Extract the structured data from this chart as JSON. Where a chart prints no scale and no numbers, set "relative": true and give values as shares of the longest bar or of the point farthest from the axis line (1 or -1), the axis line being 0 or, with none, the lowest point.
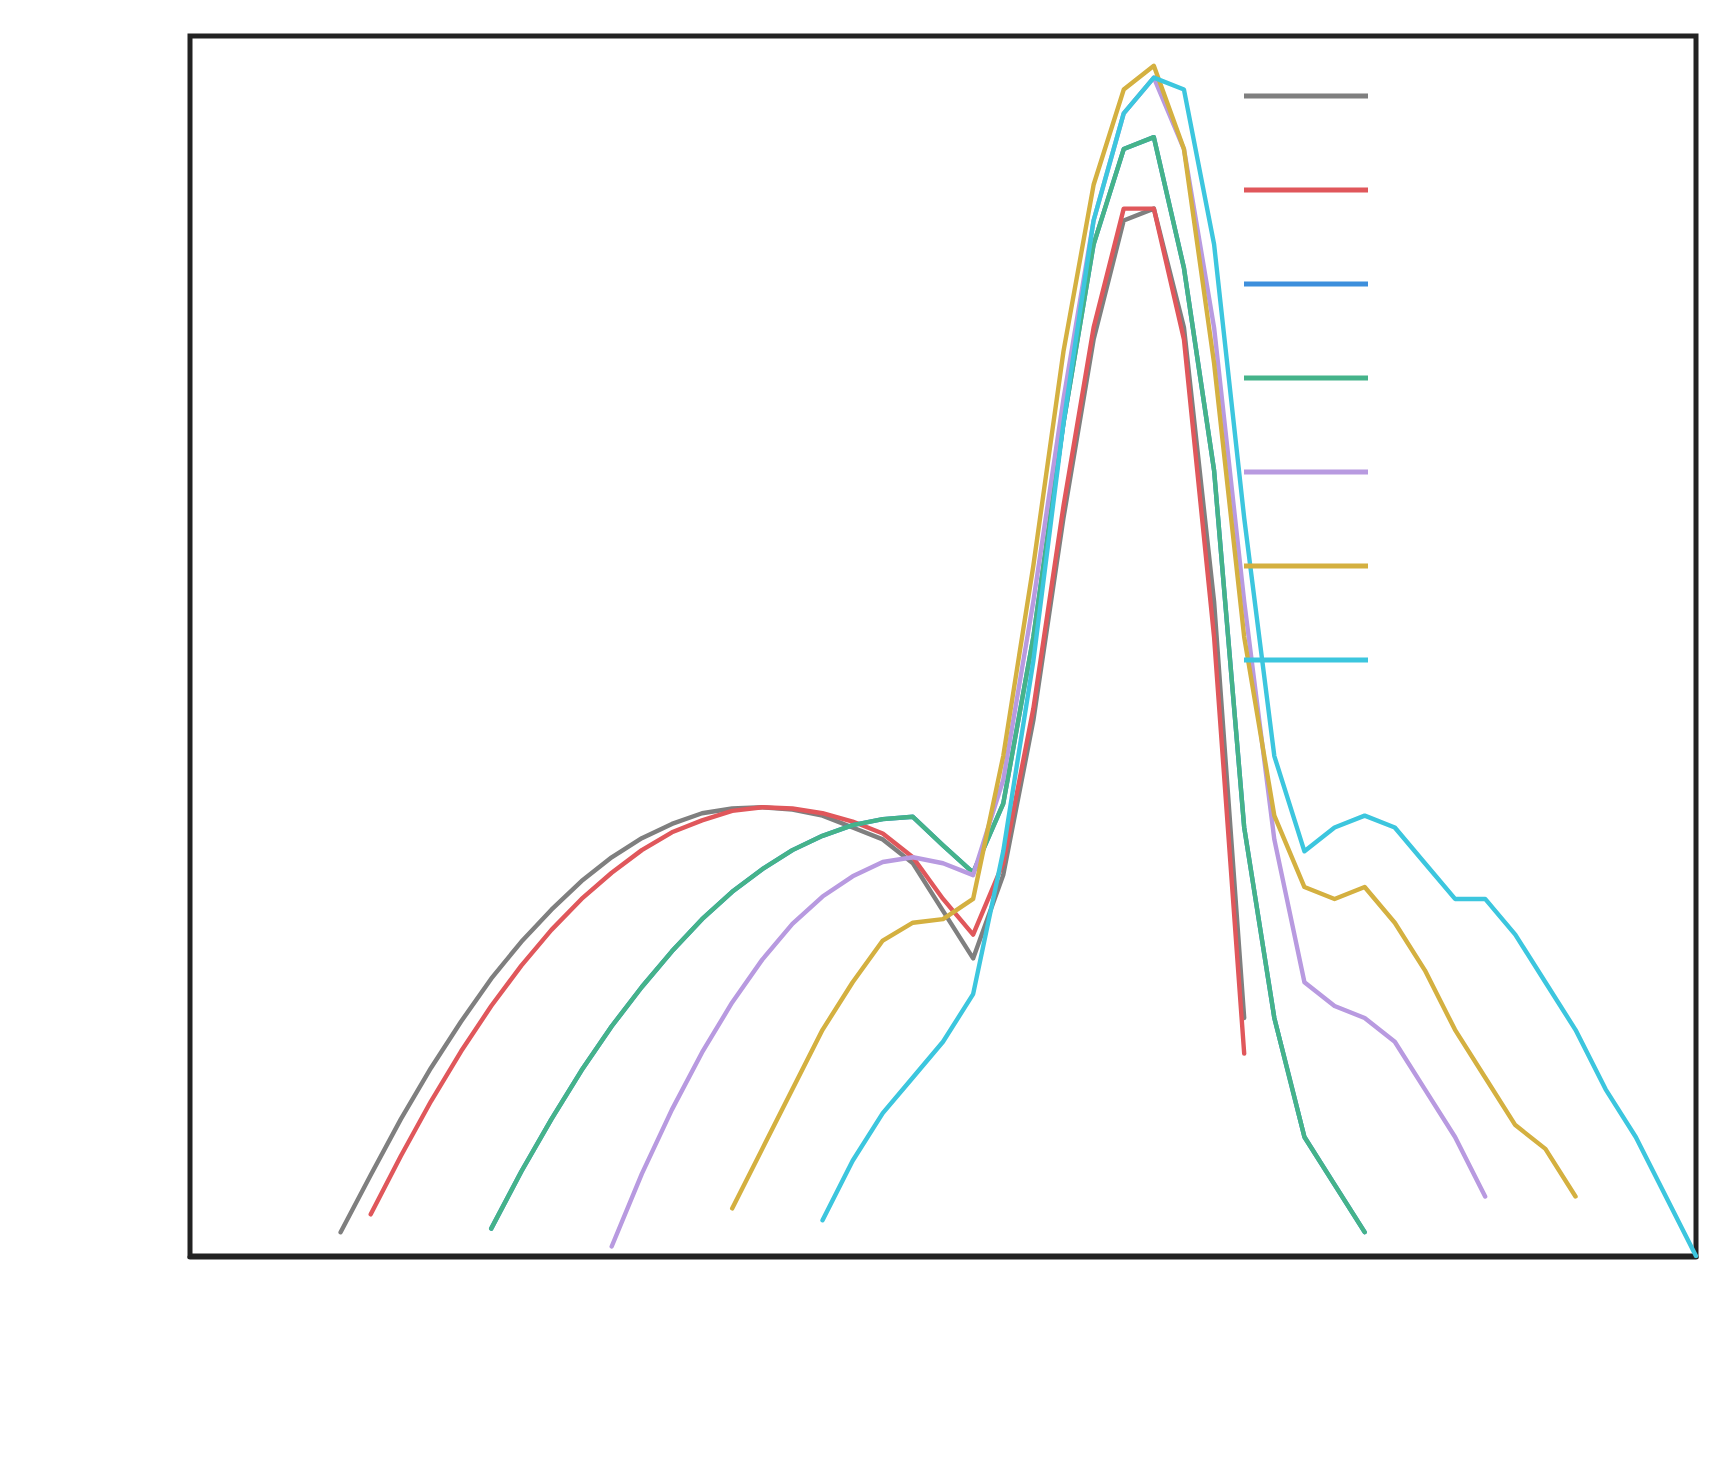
{
  "chart_data": {
    "type": "line",
    "relative": true,
    "marker": "none",
    "line_style": "solid",
    "categories": [
      null,
      null,
      null,
      null,
      null,
      null,
      null,
      null,
      null,
      null,
      null,
      null,
      null,
      null,
      null,
      null,
      null,
      null,
      null,
      null,
      null,
      null,
      null,
      null,
      null,
      null,
      null,
      null,
      null,
      null,
      null,
      null,
      null,
      null,
      null,
      null,
      null,
      null,
      null,
      null,
      null,
      null,
      null,
      null,
      null,
      null,
      null,
      null,
      null,
      null,
      null
    ],
    "series": [
      {
        "color": "#7f7f7f",
        "values": [
          null,
          null,
          null,
          null,
          null,
          0.02,
          0.068,
          0.115,
          0.158,
          0.197,
          0.233,
          0.264,
          0.291,
          0.315,
          0.335,
          0.351,
          0.363,
          0.372,
          0.376,
          0.377,
          0.375,
          0.37,
          0.36,
          0.35,
          0.33,
          0.29,
          0.25,
          0.32,
          0.45,
          0.62,
          0.77,
          0.87,
          0.88,
          0.78,
          0.55,
          0.2,
          null,
          null,
          null,
          null,
          null,
          null,
          null,
          null,
          null,
          null,
          null,
          null,
          null,
          null,
          null
        ]
      },
      {
        "color": "#e0575b",
        "values": [
          null,
          null,
          null,
          null,
          null,
          null,
          0.035,
          0.084,
          0.13,
          0.172,
          0.21,
          0.244,
          0.274,
          0.3,
          0.322,
          0.341,
          0.356,
          0.366,
          0.374,
          0.377,
          0.376,
          0.372,
          0.365,
          0.355,
          0.335,
          0.3,
          0.27,
          0.33,
          0.46,
          0.63,
          0.78,
          0.88,
          0.88,
          0.77,
          0.52,
          0.17,
          null,
          null,
          null,
          null,
          null,
          null,
          null,
          null,
          null,
          null,
          null,
          null,
          null,
          null,
          null
        ]
      },
      {
        "color": "#3d8fdc",
        "values": [
          null,
          null,
          null,
          null,
          null,
          null,
          null,
          null,
          null,
          null,
          0.023,
          0.071,
          0.115,
          0.156,
          0.193,
          0.226,
          0.256,
          0.283,
          0.306,
          0.325,
          0.341,
          0.353,
          0.362,
          0.367,
          0.369,
          0.345,
          0.322,
          0.38,
          0.52,
          0.7,
          0.85,
          0.93,
          0.94,
          0.83,
          0.66,
          0.36,
          0.2,
          0.1,
          0.06,
          0.02,
          null,
          null,
          null,
          null,
          null,
          null,
          null,
          null,
          null,
          null,
          null
        ]
      },
      {
        "color": "#45b38a",
        "values": [
          null,
          null,
          null,
          null,
          null,
          null,
          null,
          null,
          null,
          null,
          0.023,
          0.071,
          0.115,
          0.156,
          0.193,
          0.226,
          0.256,
          0.283,
          0.306,
          0.325,
          0.341,
          0.353,
          0.362,
          0.367,
          0.369,
          0.345,
          0.322,
          0.38,
          0.52,
          0.7,
          0.85,
          0.93,
          0.94,
          0.83,
          0.66,
          0.36,
          0.2,
          0.1,
          0.06,
          0.02,
          null,
          null,
          null,
          null,
          null,
          null,
          null,
          null,
          null,
          null,
          null
        ]
      },
      {
        "color": "#b89ae0",
        "values": [
          null,
          null,
          null,
          null,
          null,
          null,
          null,
          null,
          null,
          null,
          null,
          null,
          null,
          null,
          0.008,
          0.069,
          0.123,
          0.171,
          0.213,
          0.249,
          0.279,
          0.302,
          0.319,
          0.331,
          0.335,
          0.33,
          0.32,
          0.4,
          0.55,
          0.72,
          0.87,
          0.96,
          0.99,
          0.93,
          0.78,
          0.55,
          0.35,
          0.23,
          0.21,
          0.2,
          0.18,
          0.14,
          0.1,
          0.05,
          null,
          null,
          null,
          null,
          null,
          null,
          null
        ]
      },
      {
        "color": "#d4b040",
        "values": [
          null,
          null,
          null,
          null,
          null,
          null,
          null,
          null,
          null,
          null,
          null,
          null,
          null,
          null,
          null,
          null,
          null,
          null,
          0.04,
          0.09,
          0.14,
          0.19,
          0.23,
          0.265,
          0.28,
          0.283,
          0.3,
          0.42,
          0.58,
          0.76,
          0.9,
          0.98,
          1,
          0.93,
          0.75,
          0.52,
          0.37,
          0.31,
          0.3,
          0.31,
          0.28,
          0.24,
          0.19,
          0.15,
          0.11,
          0.09,
          0.05,
          null,
          null,
          null,
          null
        ]
      },
      {
        "color": "#3cc6de",
        "values": [
          null,
          null,
          null,
          null,
          null,
          null,
          null,
          null,
          null,
          null,
          null,
          null,
          null,
          null,
          null,
          null,
          null,
          null,
          null,
          null,
          null,
          0.03,
          0.08,
          0.12,
          0.15,
          0.18,
          0.22,
          0.34,
          0.5,
          0.7,
          0.87,
          0.96,
          0.99,
          0.98,
          0.85,
          0.62,
          0.42,
          0.34,
          0.36,
          0.37,
          0.36,
          0.33,
          0.3,
          0.3,
          0.27,
          0.23,
          0.19,
          0.14,
          0.1,
          0.05,
          0
        ]
      }
    ]
  }
}
